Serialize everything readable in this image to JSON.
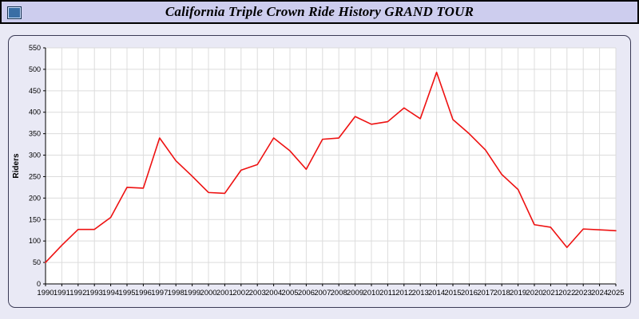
{
  "header": {
    "title": "California Triple Crown Ride History GRAND TOUR",
    "icon": "app-window-icon"
  },
  "chart_data": {
    "type": "line",
    "title": "California Triple Crown Ride History GRAND TOUR",
    "xlabel": "",
    "ylabel": "Riders",
    "ylim": [
      0,
      550
    ],
    "ytick_step": 50,
    "grid": true,
    "legend": "none",
    "line_color": "#ee1111",
    "plot_bg": "#ffffff",
    "grid_color": "#dcdcdc",
    "categories": [
      1990,
      1991,
      1992,
      1993,
      1994,
      1995,
      1996,
      1997,
      1998,
      1999,
      2000,
      2001,
      2002,
      2003,
      2004,
      2005,
      2006,
      2007,
      2008,
      2009,
      2010,
      2011,
      2012,
      2013,
      2014,
      2015,
      2016,
      2017,
      2018,
      2019,
      2020,
      2021,
      2022,
      2023,
      2024,
      2025
    ],
    "values": [
      50,
      90,
      127,
      127,
      155,
      225,
      223,
      340,
      287,
      251,
      213,
      211,
      265,
      278,
      340,
      310,
      267,
      337,
      340,
      390,
      372,
      378,
      410,
      385,
      493,
      383,
      350,
      312,
      255,
      220,
      138,
      132,
      85,
      128,
      126,
      124
    ]
  }
}
